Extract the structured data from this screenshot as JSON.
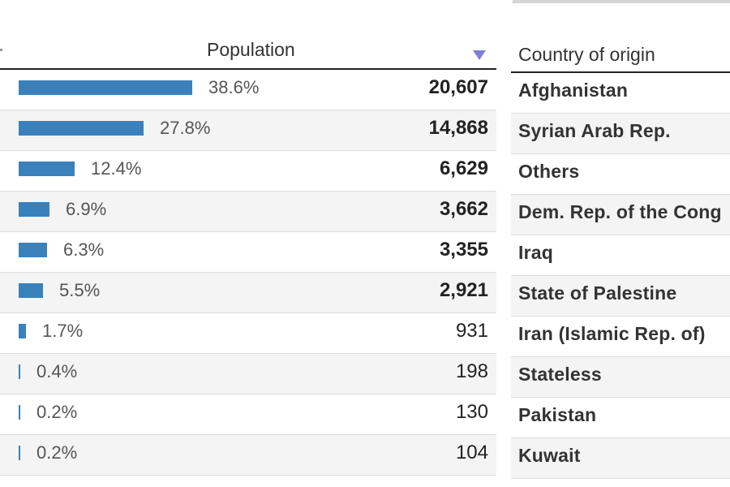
{
  "population_table": {
    "header": "Population",
    "rows": [
      {
        "bar_pct": 38.6,
        "pct_label": "38.6%",
        "value": "20,607"
      },
      {
        "bar_pct": 27.8,
        "pct_label": "27.8%",
        "value": "14,868"
      },
      {
        "bar_pct": 12.4,
        "pct_label": "12.4%",
        "value": "6,629"
      },
      {
        "bar_pct": 6.9,
        "pct_label": "6.9%",
        "value": "3,662"
      },
      {
        "bar_pct": 6.3,
        "pct_label": "6.3%",
        "value": "3,355"
      },
      {
        "bar_pct": 5.5,
        "pct_label": "5.5%",
        "value": "2,921"
      },
      {
        "bar_pct": 1.7,
        "pct_label": "1.7%",
        "value": "931"
      },
      {
        "bar_pct": 0.4,
        "pct_label": "0.4%",
        "value": "198"
      },
      {
        "bar_pct": 0.2,
        "pct_label": "0.2%",
        "value": "130"
      },
      {
        "bar_pct": 0.2,
        "pct_label": "0.2%",
        "value": "104"
      }
    ]
  },
  "country_table": {
    "header": "Country of origin",
    "rows": [
      "Afghanistan",
      "Syrian Arab Rep.",
      "Others",
      "Dem. Rep. of the Cong",
      "Iraq",
      "State of Palestine",
      "Iran (Islamic Rep. of)",
      "Stateless",
      "Pakistan",
      "Kuwait"
    ]
  },
  "colors": {
    "bar": "#3a81bc",
    "sort_indicator": "#7f7fd5"
  }
}
